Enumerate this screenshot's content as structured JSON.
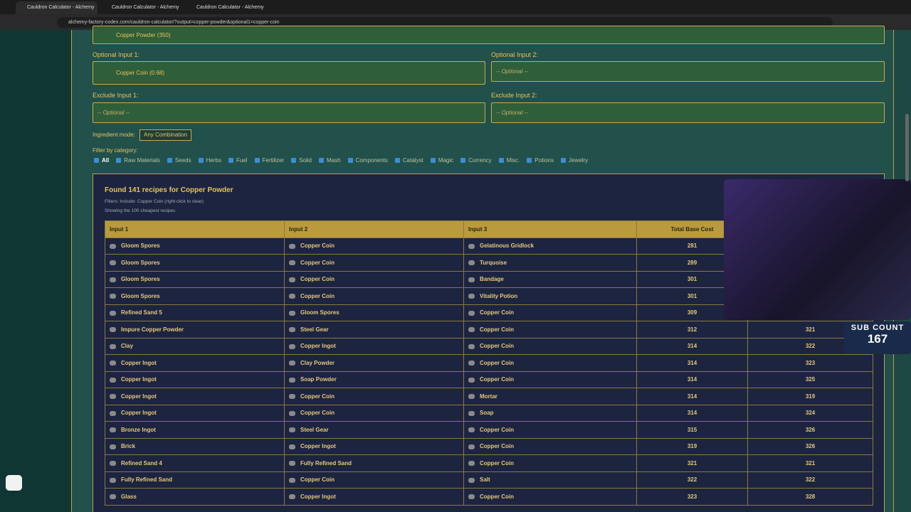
{
  "browser": {
    "tabs": [
      "Cauldron Calculator - Alchemy",
      "Cauldron Calculator - Alchemy",
      "Cauldron Calculator - Alchemy"
    ],
    "url": "alchemy-factory-codex.com/cauldron-calculator/?output=copper-powder&optional1=copper-coin"
  },
  "form": {
    "output_value": "Copper Powder (350)",
    "optional1": {
      "label": "Optional Input 1:",
      "value": "Copper Coin (0.68)"
    },
    "optional2": {
      "label": "Optional Input 2:",
      "value": "-- Optional --"
    },
    "exclude1": {
      "label": "Exclude Input 1:",
      "value": "-- Optional --"
    },
    "exclude2": {
      "label": "Exclude Input 2:",
      "value": "-- Optional --"
    },
    "mode_label": "Ingredient mode:",
    "mode_value": "Any Combination",
    "filter_label": "Filter by category:",
    "filters": [
      "All",
      "Raw Materials",
      "Seeds",
      "Herbs",
      "Fuel",
      "Fertilizer",
      "Solid",
      "Mash",
      "Components",
      "Catalyst",
      "Magic",
      "Currency",
      "Misc.",
      "Potions",
      "Jewelry"
    ]
  },
  "results": {
    "title": "Found 141 recipes for Copper Powder",
    "filters_note": "Filters: Include: Copper Coin (right-click to clear)",
    "showing_note": "Showing the 100 cheapest recipes",
    "table": {
      "headers": [
        "Input 1",
        "Input 2",
        "Input 3",
        "Total Base Cost",
        null
      ],
      "rows": [
        [
          "Gloom Spores",
          "Copper Coin",
          "Gelatinous Gridlock",
          "281",
          null
        ],
        [
          "Gloom Spores",
          "Copper Coin",
          "Turquoise",
          "289",
          null
        ],
        [
          "Gloom Spores",
          "Copper Coin",
          "Bandage",
          "301",
          null
        ],
        [
          "Gloom Spores",
          "Copper Coin",
          "Vitality Potion",
          "301",
          null
        ],
        [
          "Refined Sand 5",
          "Gloom Spores",
          "Copper Coin",
          "309",
          null
        ],
        [
          "Impure Copper Powder",
          "Steel Gear",
          "Copper Coin",
          "312",
          "321"
        ],
        [
          "Clay",
          "Copper Ingot",
          "Copper Coin",
          "314",
          "322"
        ],
        [
          "Copper Ingot",
          "Clay Powder",
          "Copper Coin",
          "314",
          "323"
        ],
        [
          "Copper Ingot",
          "Soap Powder",
          "Copper Coin",
          "314",
          "325"
        ],
        [
          "Copper Ingot",
          "Copper Coin",
          "Mortar",
          "314",
          "319"
        ],
        [
          "Copper Ingot",
          "Copper Coin",
          "Soap",
          "314",
          "324"
        ],
        [
          "Bronze Ingot",
          "Steel Gear",
          "Copper Coin",
          "315",
          "326"
        ],
        [
          "Brick",
          "Copper Ingot",
          "Copper Coin",
          "319",
          "326"
        ],
        [
          "Refined Sand 4",
          "Fully Refined Sand",
          "Copper Coin",
          "321",
          "321"
        ],
        [
          "Fully Refined Sand",
          "Copper Coin",
          "Salt",
          "322",
          "322"
        ],
        [
          "Glass",
          "Copper Ingot",
          "Copper Coin",
          "323",
          "328"
        ]
      ]
    }
  },
  "overlay": {
    "sub_label": "SUB COUNT",
    "sub_value": "167"
  }
}
